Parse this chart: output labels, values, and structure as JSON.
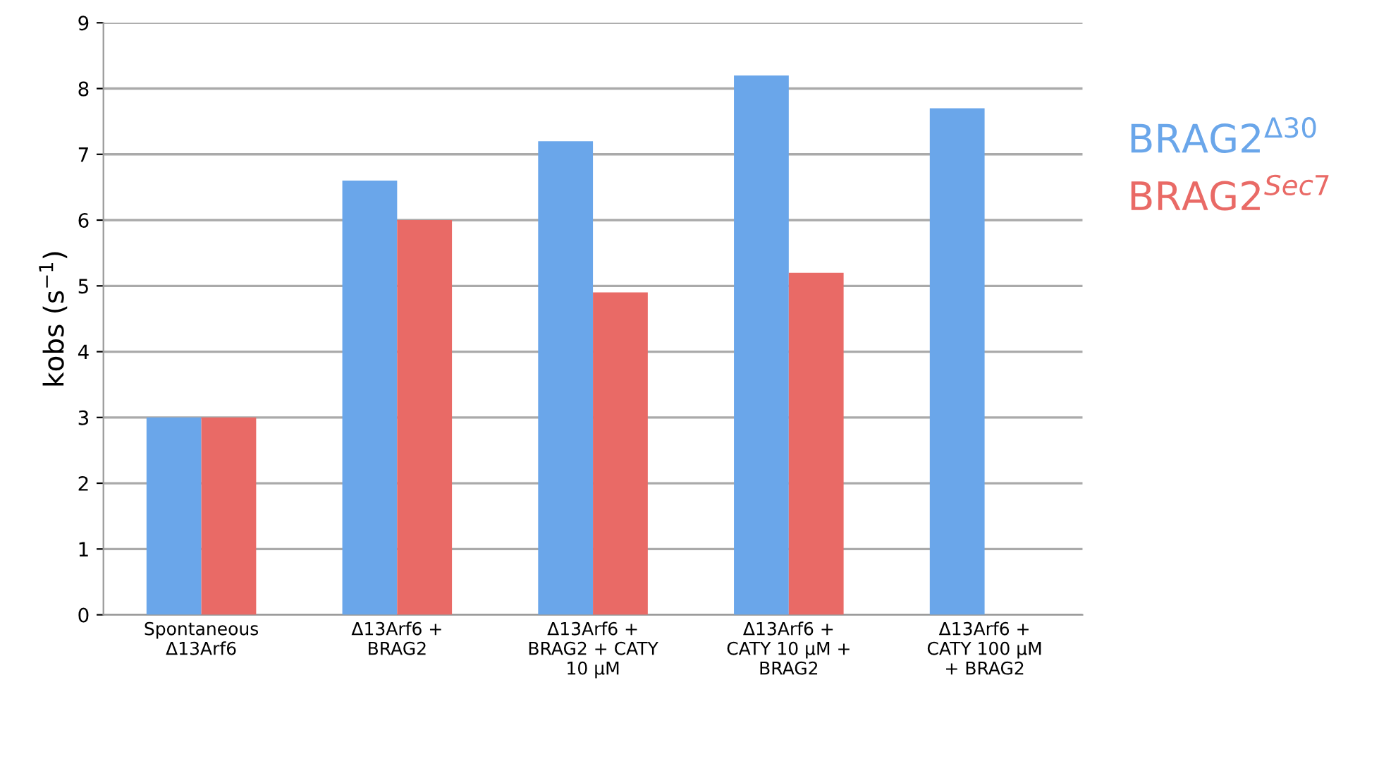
{
  "chart_data": {
    "type": "bar",
    "ylabel": "kobs (s$^{−1}$)",
    "categories": [
      "Spontaneous\nΔ13Arf6",
      "Δ13Arf6 +\nBRAG2",
      "Δ13Arf6 +\nBRAG2 + CATY\n10 μM",
      "Δ13Arf6 +\nCATY 10 μM +\nBRAG2",
      "Δ13Arf6 +\nCATY 100 μM\n+ BRAG2"
    ],
    "series": [
      {
        "name": "BRAG2$^{Δ30}$",
        "color": "#6aa6ea",
        "values": [
          3.0,
          6.6,
          7.2,
          8.2,
          7.7
        ]
      },
      {
        "name": "BRAG2$^{Sec7}$",
        "color": "#e96a66",
        "values": [
          3.0,
          6.0,
          4.9,
          5.2,
          null
        ]
      }
    ],
    "ylim": [
      0,
      9
    ],
    "yticks": [
      0,
      1,
      2,
      3,
      4,
      5,
      6,
      7,
      8,
      9
    ],
    "grid": "y",
    "legend": "right"
  }
}
